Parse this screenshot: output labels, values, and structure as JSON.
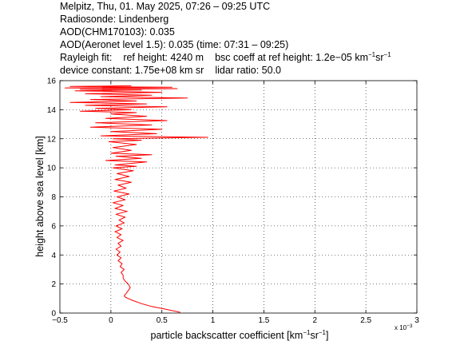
{
  "header": {
    "line1": "Melpitz, Thu, 01. May 2025, 07:26 – 09:25 UTC",
    "line2": "Radiosonde: Lindenberg",
    "line3": "AOD(CHM170103): 0.035",
    "line4": "AOD(Aeronet level 1.5): 0.035   (time: 07:31 – 09:25)",
    "rayleigh_label": "Rayleigh fit:",
    "ref_height": "ref height: 4240 m",
    "bsc_coeff": "bsc coeff at ref height: 1.2e−05 km",
    "bsc_unit_km_exp": "−1",
    "bsc_unit_sr": "sr",
    "bsc_unit_sr_exp": "−1",
    "device_constant": "device constant: 1.75e+08 km sr",
    "lidar_ratio": "lidar ratio: 50.0"
  },
  "chart_data": {
    "type": "line",
    "xlabel_main": "particle backscatter coefficient [km",
    "xlabel_exp1": "−1",
    "xlabel_sr": "sr",
    "xlabel_exp2": "−1",
    "xlabel_end": "]",
    "ylabel": "height above sea level [km]",
    "x_multiplier": "x 10",
    "x_multiplier_exp": "−3",
    "xlim": [
      -0.5,
      3
    ],
    "ylim": [
      0,
      16
    ],
    "xticks": [
      -0.5,
      0,
      0.5,
      1,
      1.5,
      2,
      2.5,
      3
    ],
    "xtick_labels": [
      "−0.5",
      "0",
      "0.5",
      "1",
      "1.5",
      "2",
      "2.5",
      "3"
    ],
    "yticks": [
      0,
      2,
      4,
      6,
      8,
      10,
      12,
      14,
      16
    ],
    "ytick_labels": [
      "0",
      "2",
      "4",
      "6",
      "8",
      "10",
      "12",
      "14",
      "16"
    ],
    "grid": true,
    "line_color": "#ff0000",
    "series": [
      {
        "x": [
          0.68,
          0.55,
          0.4,
          0.3,
          0.22,
          0.17,
          0.14,
          0.13,
          0.15,
          0.17,
          0.19,
          0.17,
          0.14,
          0.12,
          0.12,
          0.1,
          0.13,
          0.09,
          0.11,
          0.07,
          0.1,
          0.06,
          0.09,
          0.05,
          0.1,
          0.07,
          0.12,
          0.06,
          0.1,
          0.04,
          0.11,
          0.05,
          0.13,
          0.08,
          0.14,
          0.05,
          0.16,
          0.04,
          0.12,
          0.02,
          0.14,
          0.06,
          0.18,
          0.03,
          0.15,
          0.07,
          0.2,
          0.04,
          0.18,
          0.06,
          0.22,
          0.02,
          0.25,
          0.04,
          0.35,
          -0.05,
          0.3,
          0.05,
          0.4,
          0.0,
          0.2,
          0.02,
          0.25,
          -0.02,
          0.3,
          0.02,
          0.95,
          -0.1,
          0.45,
          0.0,
          0.5,
          -0.2,
          0.4,
          -0.15,
          0.55,
          -0.05,
          0.35,
          0.0,
          0.25,
          -0.3,
          0.2,
          -0.15,
          0.55,
          -0.25,
          0.35,
          -0.4,
          0.25,
          -0.2,
          0.75,
          -0.1,
          0.4,
          -0.25,
          0.5,
          -0.35,
          0.3,
          -0.3,
          0.65,
          -0.45,
          0.6,
          -0.4,
          0.2
        ],
        "y": [
          0.05,
          0.25,
          0.45,
          0.65,
          0.85,
          1.0,
          1.1,
          1.2,
          1.35,
          1.55,
          1.75,
          2.0,
          2.2,
          2.4,
          2.6,
          2.8,
          3.0,
          3.2,
          3.4,
          3.6,
          3.8,
          4.0,
          4.2,
          4.4,
          4.6,
          4.8,
          5.0,
          5.2,
          5.4,
          5.6,
          5.8,
          6.0,
          6.2,
          6.4,
          6.6,
          6.8,
          7.0,
          7.2,
          7.4,
          7.6,
          7.8,
          8.0,
          8.2,
          8.4,
          8.6,
          8.8,
          9.0,
          9.2,
          9.4,
          9.6,
          9.8,
          10.0,
          10.1,
          10.2,
          10.4,
          10.5,
          10.65,
          10.8,
          10.9,
          11.0,
          11.2,
          11.4,
          11.6,
          11.8,
          11.9,
          12.0,
          12.1,
          12.2,
          12.35,
          12.5,
          12.65,
          12.8,
          12.95,
          13.1,
          13.25,
          13.4,
          13.55,
          13.7,
          13.8,
          13.9,
          14.0,
          14.1,
          14.2,
          14.3,
          14.4,
          14.5,
          14.6,
          14.7,
          14.8,
          14.9,
          15.0,
          15.1,
          15.2,
          15.3,
          15.35,
          15.4,
          15.45,
          15.5,
          15.55,
          15.6,
          15.65
        ]
      }
    ]
  }
}
